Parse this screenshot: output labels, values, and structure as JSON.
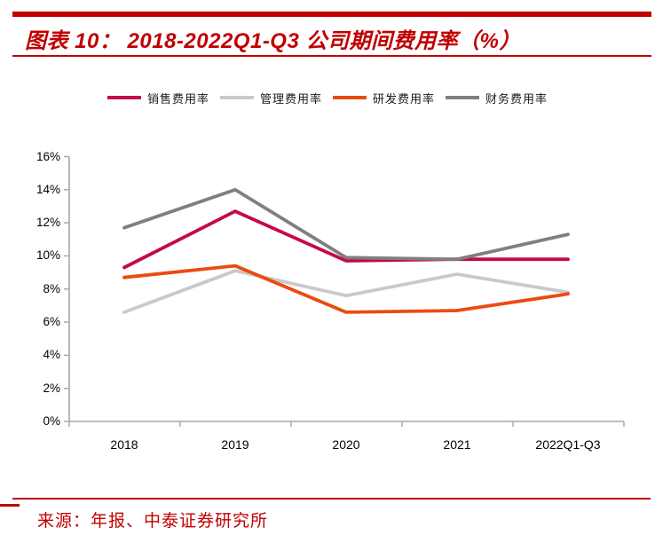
{
  "header": {
    "title": "图表 10：  2018-2022Q1-Q3 公司期间费用率（%）",
    "accent_color": "#C00000"
  },
  "chart_data": {
    "type": "line",
    "categories": [
      "2018",
      "2019",
      "2020",
      "2021",
      "2022Q1-Q3"
    ],
    "series": [
      {
        "name": "销售费用率",
        "color": "#C5094A",
        "values": [
          9.3,
          12.7,
          9.7,
          9.8,
          9.8
        ]
      },
      {
        "name": "管理费用率",
        "color": "#C9C9C9",
        "values": [
          6.6,
          9.1,
          7.6,
          8.9,
          7.8
        ]
      },
      {
        "name": "研发费用率",
        "color": "#EA4B0F",
        "values": [
          8.7,
          9.4,
          6.6,
          6.7,
          7.7
        ]
      },
      {
        "name": "财务费用率",
        "color": "#7F7F7F",
        "values": [
          11.7,
          14.0,
          9.9,
          9.8,
          11.3
        ]
      }
    ],
    "title": "2018-2022Q1-Q3 公司期间费用率（%）",
    "xlabel": "",
    "ylabel": "",
    "ylim": [
      0,
      16
    ],
    "ytick_step": 2,
    "ytick_labels": [
      "0%",
      "2%",
      "4%",
      "6%",
      "8%",
      "10%",
      "12%",
      "14%",
      "16%"
    ],
    "grid": false,
    "legend_position": "top",
    "axis_color": "#A6A6A6",
    "label_color": "#000000"
  },
  "source": {
    "text": "来源：年报、中泰证券研究所"
  }
}
